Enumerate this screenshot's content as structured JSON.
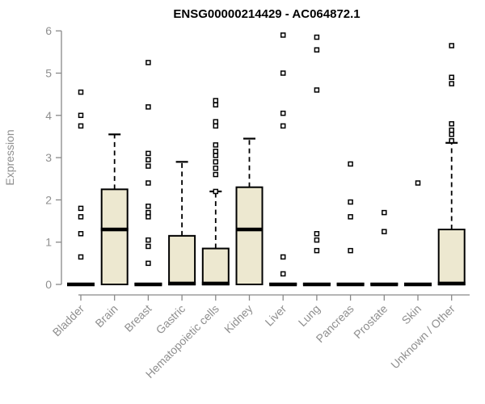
{
  "title": "ENSG00000214429 - AC064872.1",
  "chart_data": {
    "type": "boxplot",
    "title": "ENSG00000214429 - AC064872.1",
    "xlabel": "",
    "ylabel": "Expression",
    "ylim": [
      0,
      6
    ],
    "yticks": [
      0,
      1,
      2,
      3,
      4,
      5,
      6
    ],
    "grid": false,
    "legend": "none",
    "colors": {
      "box_fill": "#EDE8D0",
      "box_stroke": "#000000",
      "axis": "#898989",
      "axis_text": "#8f8f8f",
      "title_text": "#000000",
      "background": "#ffffff"
    },
    "categories": [
      "Bladder",
      "Brain",
      "Breast",
      "Gastric",
      "Hematopoietic cells",
      "Kidney",
      "Liver",
      "Lung",
      "Pancreas",
      "Prostate",
      "Skin",
      "Unknown / Other"
    ],
    "boxes": [
      {
        "category": "Bladder",
        "q1": 0,
        "median": 0,
        "q3": 0.02,
        "whisker_low": 0,
        "whisker_high": 0.02,
        "outliers": [
          4.55,
          4.0,
          3.75,
          1.8,
          1.6,
          1.2,
          0.65
        ]
      },
      {
        "category": "Brain",
        "q1": 0,
        "median": 1.3,
        "q3": 2.25,
        "whisker_low": 0,
        "whisker_high": 3.55,
        "outliers": []
      },
      {
        "category": "Breast",
        "q1": 0,
        "median": 0,
        "q3": 0.02,
        "whisker_low": 0,
        "whisker_high": 0.02,
        "outliers": [
          5.25,
          4.2,
          3.1,
          2.95,
          2.8,
          2.4,
          1.85,
          1.7,
          1.6,
          1.05,
          0.9,
          0.5
        ]
      },
      {
        "category": "Gastric",
        "q1": 0,
        "median": 0.02,
        "q3": 1.15,
        "whisker_low": 0,
        "whisker_high": 2.9,
        "outliers": []
      },
      {
        "category": "Hematopoietic cells",
        "q1": 0,
        "median": 0.02,
        "q3": 0.85,
        "whisker_low": 0,
        "whisker_high": 2.2,
        "outliers": [
          4.35,
          4.25,
          3.85,
          3.75,
          3.3,
          3.15,
          3.05,
          2.9,
          2.75,
          2.6,
          2.2
        ]
      },
      {
        "category": "Kidney",
        "q1": 0,
        "median": 1.3,
        "q3": 2.3,
        "whisker_low": 0,
        "whisker_high": 3.45,
        "outliers": []
      },
      {
        "category": "Liver",
        "q1": 0,
        "median": 0,
        "q3": 0.02,
        "whisker_low": 0,
        "whisker_high": 0.02,
        "outliers": [
          5.9,
          5.0,
          4.05,
          3.75,
          0.65,
          0.25
        ]
      },
      {
        "category": "Lung",
        "q1": 0,
        "median": 0,
        "q3": 0.02,
        "whisker_low": 0,
        "whisker_high": 0.02,
        "outliers": [
          5.85,
          5.55,
          4.6,
          1.2,
          1.05,
          0.8
        ]
      },
      {
        "category": "Pancreas",
        "q1": 0,
        "median": 0,
        "q3": 0.02,
        "whisker_low": 0,
        "whisker_high": 0.02,
        "outliers": [
          2.85,
          1.95,
          1.6,
          0.8
        ]
      },
      {
        "category": "Prostate",
        "q1": 0,
        "median": 0,
        "q3": 0.02,
        "whisker_low": 0,
        "whisker_high": 0.02,
        "outliers": [
          1.7,
          1.25
        ]
      },
      {
        "category": "Skin",
        "q1": 0,
        "median": 0,
        "q3": 0.02,
        "whisker_low": 0,
        "whisker_high": 0.02,
        "outliers": [
          2.4
        ]
      },
      {
        "category": "Unknown / Other",
        "q1": 0,
        "median": 0.02,
        "q3": 1.3,
        "whisker_low": 0,
        "whisker_high": 3.35,
        "outliers": [
          5.65,
          4.9,
          4.75,
          3.8,
          3.65,
          3.55,
          3.4
        ]
      }
    ]
  }
}
